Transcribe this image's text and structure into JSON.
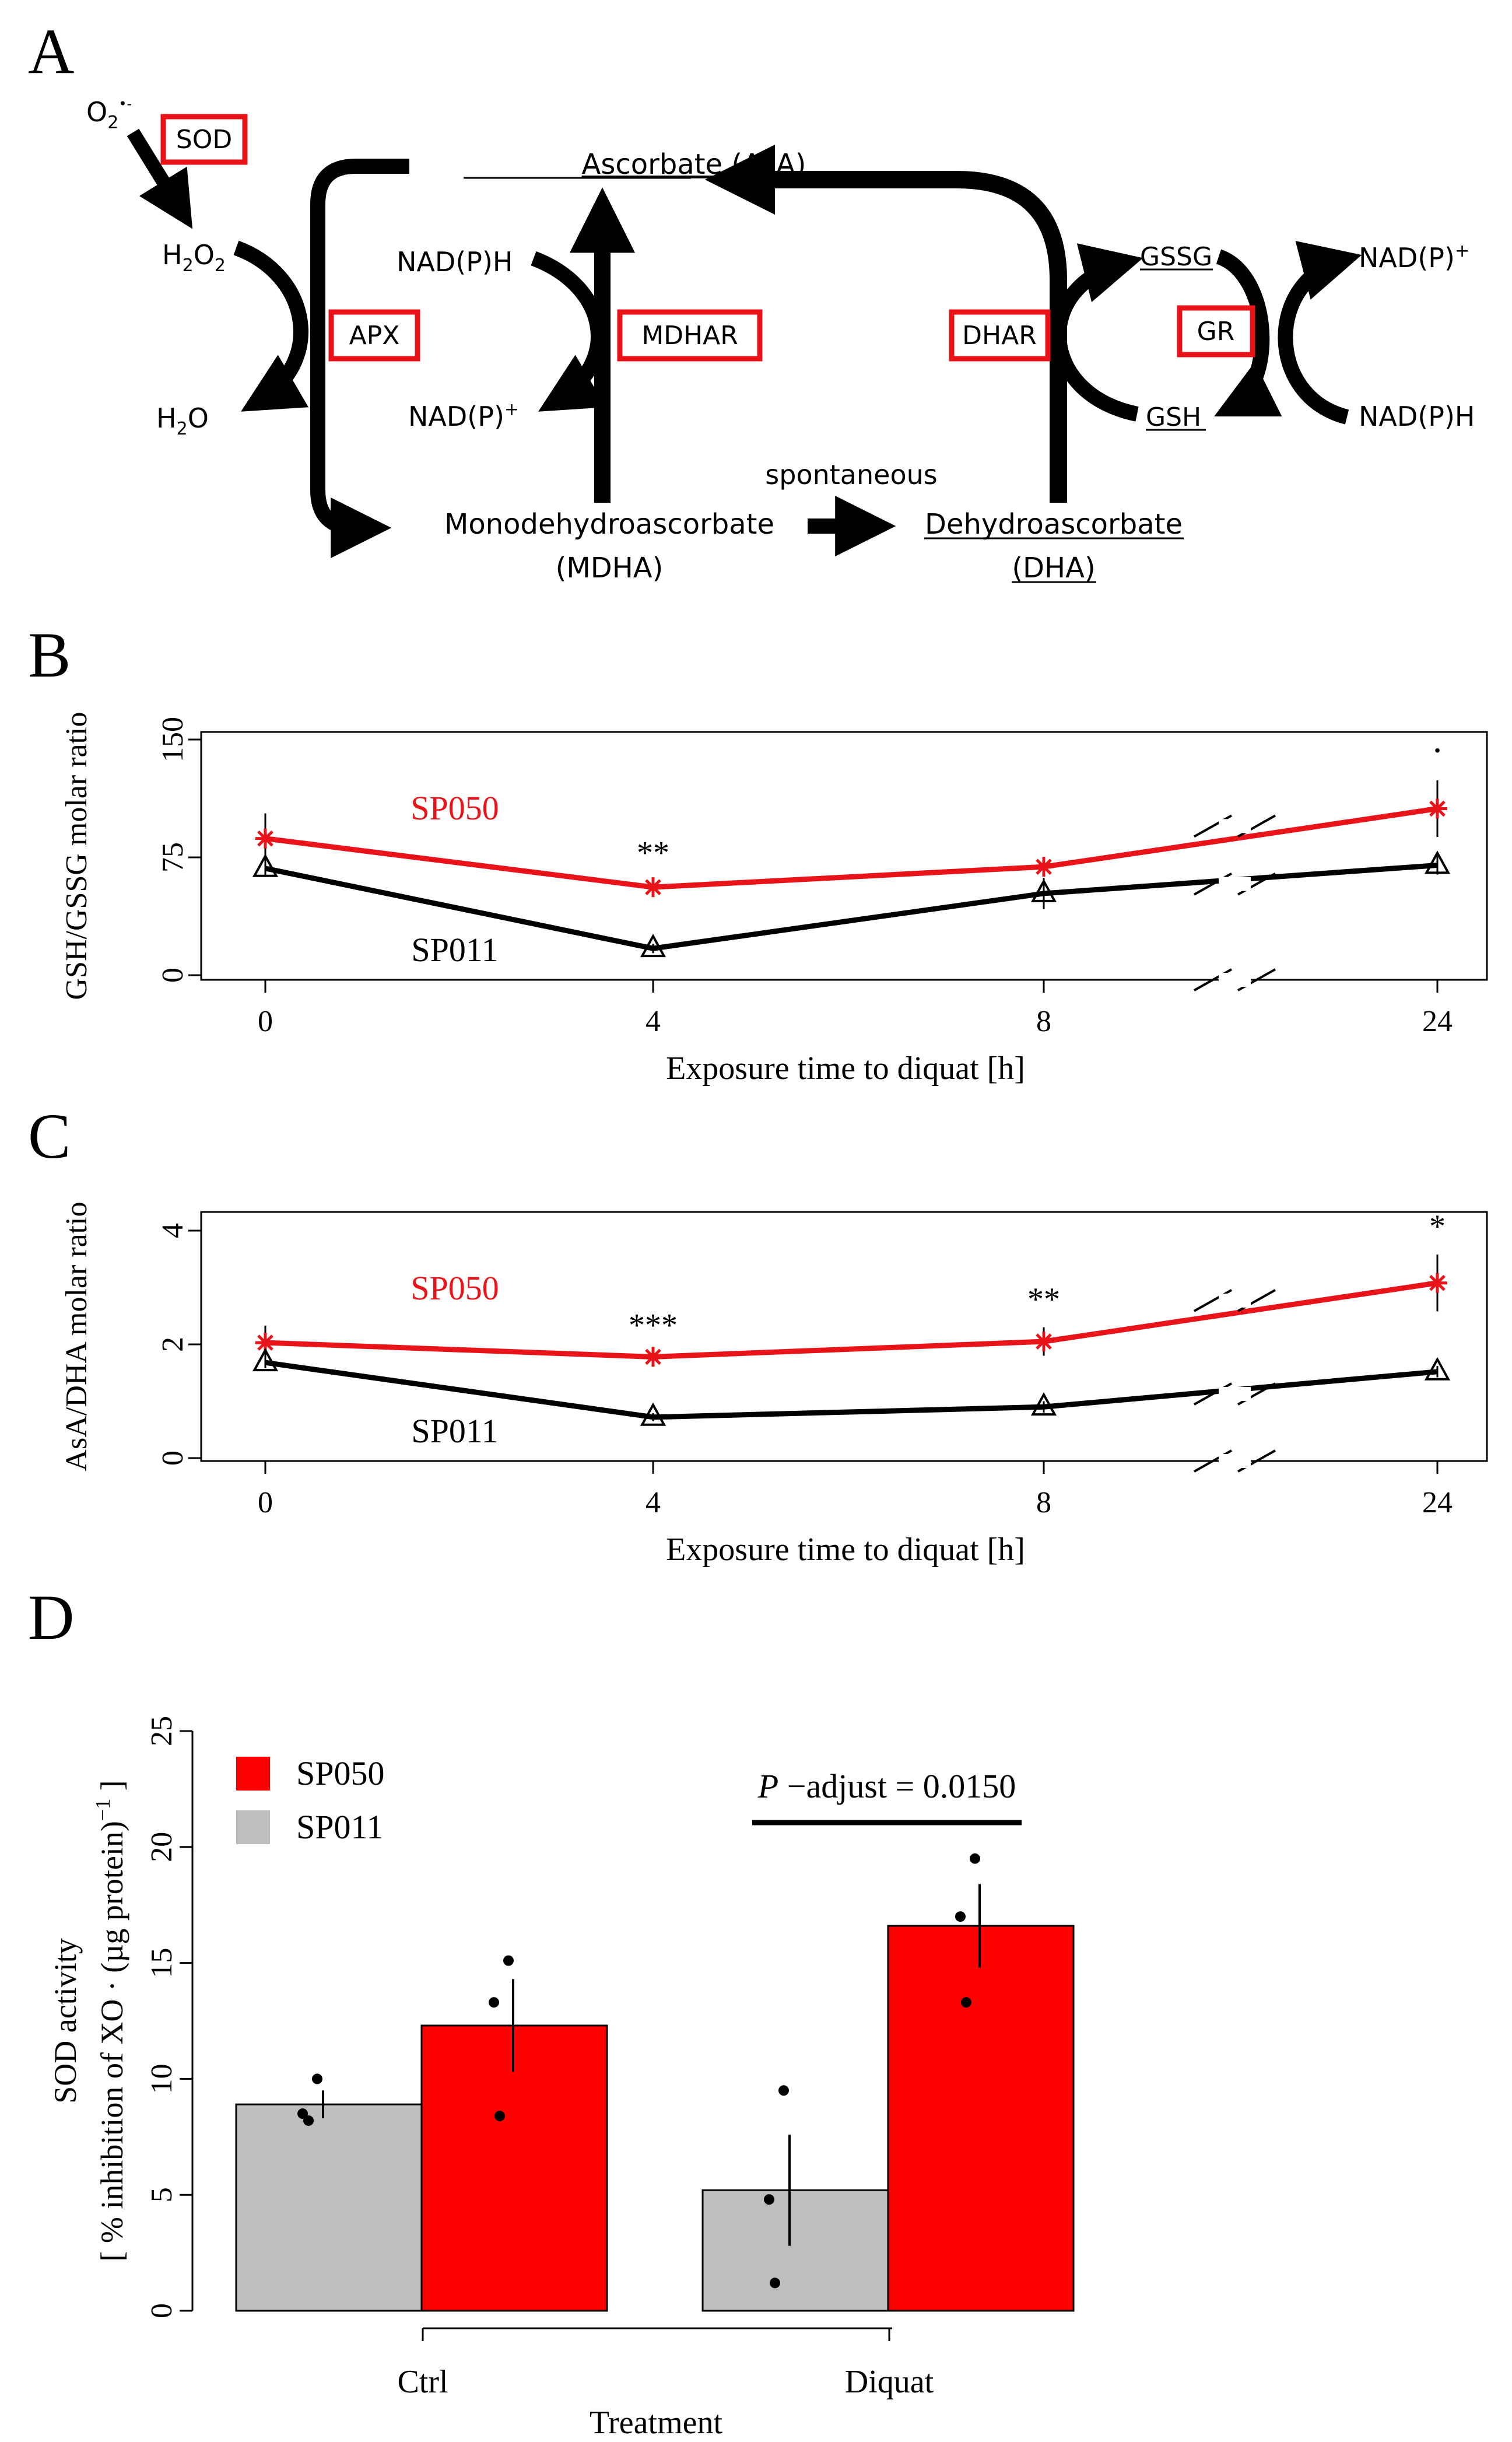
{
  "panel_labels": {
    "a": "A",
    "b": "B",
    "c": "C",
    "d": "D"
  },
  "pathway": {
    "superoxide": "O",
    "superoxide_sub": "2",
    "superoxide_sup": "•-",
    "h2o2": "H",
    "h2o2_sub": "2",
    "h2o2_tail": "O",
    "h2o2_sub2": "2",
    "h2o": "H",
    "h2o_sub": "2",
    "h2o_tail": "O",
    "ascorbate": "Ascorbate (AsA)",
    "mdha_line1": "Monodehydroascorbate",
    "mdha_line2": "(MDHA)",
    "dha_line1": "Dehydroascorbate",
    "dha_line2": "(DHA)",
    "spontaneous": "spontaneous",
    "nadph_left": "NAD(P)H",
    "nadp_left": "NAD(P)",
    "nadp_left_sup": "+",
    "gssg": "GSSG",
    "gsh": "GSH",
    "nadp_right": "NAD(P)",
    "nadp_right_sup": "+",
    "nadph_right": "NAD(P)H",
    "enzymes": {
      "sod": "SOD",
      "apx": "APX",
      "mdhar": "MDHAR",
      "dhar": "DHAR",
      "gr": "GR"
    },
    "enzyme_color": "#e8141a"
  },
  "chart_data": [
    {
      "panel": "B",
      "type": "line",
      "ylabel": "GSH/GSSG molar ratio",
      "xlabel": "Exposure time to diquat [h]",
      "x_categories": [
        "0",
        "4",
        "8",
        "24"
      ],
      "yticks": [
        "0",
        "75",
        "150"
      ],
      "ylim": [
        0,
        150
      ],
      "series": [
        {
          "name": "SP050",
          "color": "#e8141a",
          "marker": "star",
          "values": [
            87,
            56,
            69,
            106
          ],
          "errors": [
            16,
            4,
            5,
            18
          ]
        },
        {
          "name": "SP011",
          "color": "#000000",
          "marker": "triangle",
          "values": [
            68,
            17,
            52,
            70
          ],
          "errors": [
            5,
            3,
            10,
            6
          ]
        }
      ],
      "significance": [
        "",
        "**",
        "",
        "·"
      ]
    },
    {
      "panel": "C",
      "type": "line",
      "ylabel": "AsA/DHA molar ratio",
      "xlabel": "Exposure time to diquat [h]",
      "x_categories": [
        "0",
        "4",
        "8",
        "24"
      ],
      "yticks": [
        "0",
        "2",
        "4"
      ],
      "ylim": [
        0,
        4
      ],
      "series": [
        {
          "name": "SP050",
          "color": "#e8141a",
          "marker": "star",
          "values": [
            2.03,
            1.78,
            2.05,
            3.08
          ],
          "errors": [
            0.3,
            0.06,
            0.25,
            0.5
          ]
        },
        {
          "name": "SP011",
          "color": "#000000",
          "marker": "triangle",
          "values": [
            1.68,
            0.72,
            0.9,
            1.52
          ],
          "errors": [
            0.1,
            0.07,
            0.1,
            0.1
          ]
        }
      ],
      "significance": [
        "",
        "***",
        "**",
        "*"
      ]
    },
    {
      "panel": "D",
      "type": "bar",
      "ylabel_line1": "SOD activity",
      "ylabel_line2": "[ % inhibition of XO · (µg protein)",
      "ylabel_sup": "−1",
      "ylabel_end": " ]",
      "xlabel": "Treatment",
      "categories": [
        "Ctrl",
        "Diquat"
      ],
      "yticks": [
        "0",
        "5",
        "10",
        "15",
        "20",
        "25"
      ],
      "ylim": [
        0,
        25
      ],
      "series": [
        {
          "name": "SP011",
          "color": "#bebebe",
          "values": [
            8.9,
            5.2
          ],
          "errors": [
            0.6,
            2.4
          ],
          "points": [
            [
              10.0,
              8.5,
              8.2
            ],
            [
              9.5,
              4.8,
              1.2
            ]
          ]
        },
        {
          "name": "SP050",
          "color": "#ff0000",
          "values": [
            12.3,
            16.6
          ],
          "errors": [
            2.0,
            1.8
          ],
          "points": [
            [
              15.1,
              13.3,
              8.4
            ],
            [
              19.5,
              17.0,
              13.3
            ]
          ]
        }
      ],
      "legend": [
        {
          "name": "SP050",
          "color": "#ff0000"
        },
        {
          "name": "SP011",
          "color": "#bebebe"
        }
      ],
      "annotation": {
        "italic": "P",
        "rest": " −adjust = 0.0150"
      }
    }
  ]
}
